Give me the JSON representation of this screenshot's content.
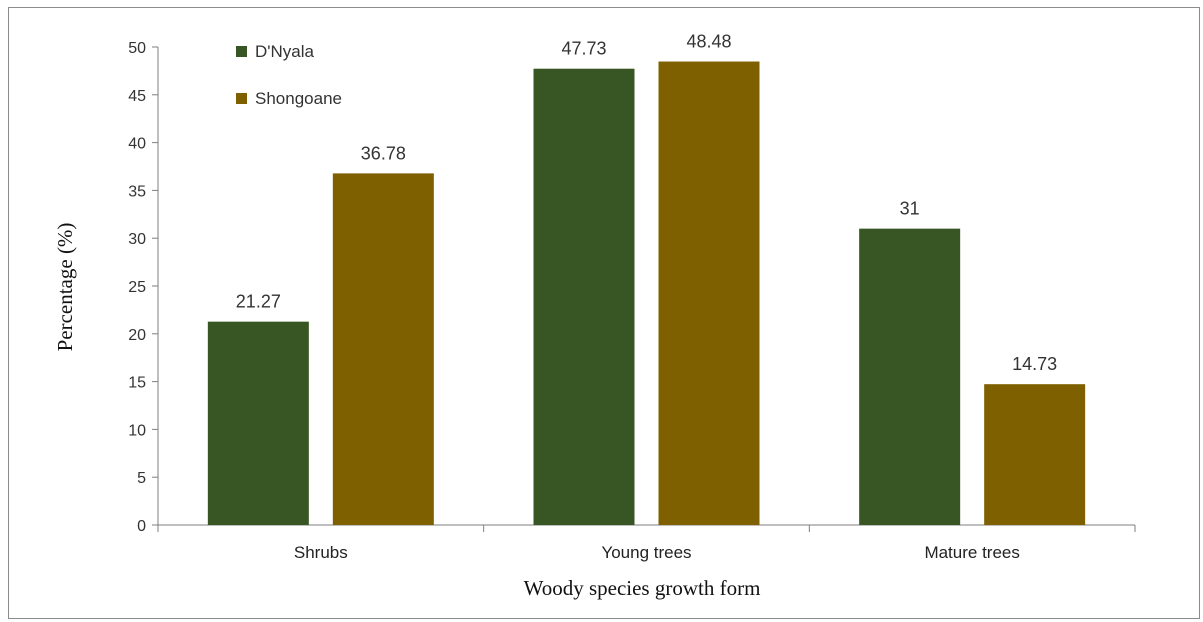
{
  "chart_data": {
    "type": "bar",
    "title": "",
    "xlabel": "Woody species growth form",
    "ylabel": "Percentage (%)",
    "categories": [
      "Shrubs",
      "Young trees",
      "Mature trees"
    ],
    "series": [
      {
        "name": "D'Nyala",
        "values": [
          21.27,
          47.73,
          31
        ],
        "labels": [
          "21.27",
          "47.73",
          "31"
        ],
        "color": "#375623"
      },
      {
        "name": "Shongoane",
        "values": [
          36.78,
          48.48,
          14.73
        ],
        "labels": [
          "36.78",
          "48.48",
          "14.73"
        ],
        "color": "#7f6000"
      }
    ],
    "ylim": [
      0,
      50
    ],
    "yticks": [
      0,
      5,
      10,
      15,
      20,
      25,
      30,
      35,
      40,
      45,
      50
    ],
    "grid": false,
    "legend_position": "top-left"
  }
}
